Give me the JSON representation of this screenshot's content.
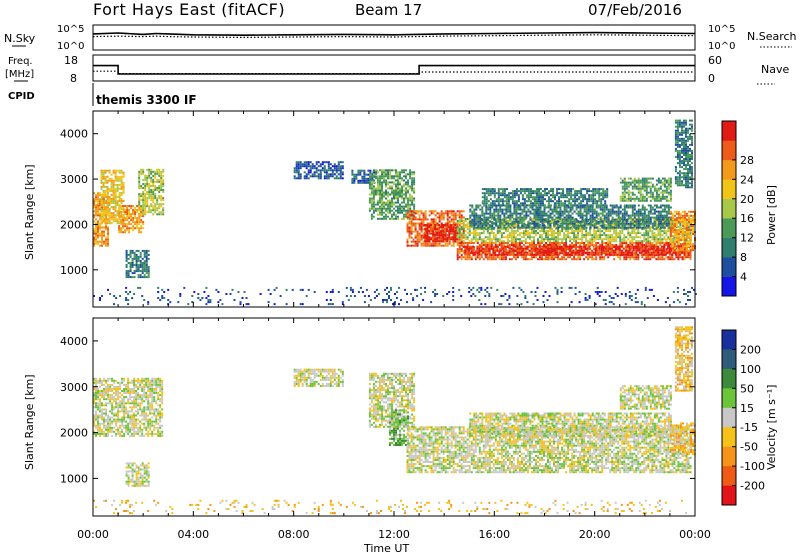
{
  "header": {
    "station": "Fort Hays East (fitACF)",
    "beam": "Beam 17",
    "date": "07/Feb/2016"
  },
  "chart_data": [
    {
      "type": "line",
      "name": "noise-panel",
      "left_label": "N.Sky",
      "right_label": "N.Search",
      "left_ticks": [
        "10^5",
        "10^0"
      ],
      "right_ticks": [
        "10^5",
        "10^0"
      ],
      "x": [
        0,
        1,
        2,
        2.5,
        3,
        4,
        6,
        8,
        10,
        12,
        14,
        16,
        18,
        20,
        22,
        24
      ],
      "series": [
        {
          "style": "solid",
          "values": [
            3.2,
            3.4,
            3.1,
            3.3,
            3.2,
            3.0,
            2.9,
            3.0,
            3.1,
            3.0,
            3.2,
            3.3,
            3.4,
            3.5,
            3.4,
            3.3
          ]
        },
        {
          "style": "dotted",
          "values": [
            2.6,
            2.7,
            2.6,
            2.7,
            2.6,
            2.5,
            2.4,
            2.5,
            2.6,
            2.5,
            2.7,
            2.8,
            2.9,
            3.0,
            2.9,
            2.8
          ]
        }
      ],
      "ylim": [
        0,
        5
      ]
    },
    {
      "type": "line",
      "name": "freq-nave-panel",
      "left_label_lines": [
        "Freq.",
        "[MHz]"
      ],
      "right_label": "Nave",
      "left_ticks": [
        "18",
        "8"
      ],
      "right_ticks": [
        "60",
        "0"
      ],
      "freq": {
        "x": [
          0,
          1.0,
          1.0,
          13.0,
          13.0,
          24
        ],
        "values": [
          14,
          14,
          10.5,
          10.5,
          14,
          14
        ],
        "ylim": [
          8,
          18
        ]
      },
      "nave": {
        "x": [
          0,
          1.0,
          1.0,
          13.0,
          13.0,
          24
        ],
        "values": [
          22,
          22,
          16,
          16,
          20,
          20
        ],
        "ylim": [
          0,
          60
        ]
      }
    },
    {
      "type": "heatmap",
      "name": "power-panel",
      "ylabel": "Slant Range [km]",
      "y_ticks": [
        "1000",
        "2000",
        "3000",
        "4000"
      ],
      "ylim": [
        180,
        4500
      ],
      "xlim": [
        0,
        24
      ],
      "colorbar": {
        "label": "Power [dB]",
        "ticks": [
          "4",
          "8",
          "12",
          "16",
          "20",
          "24",
          "28"
        ],
        "colors": [
          "#1515e8",
          "#1e4f9e",
          "#2f7e6e",
          "#4c9a58",
          "#a8c84a",
          "#f2c318",
          "#f39a1c",
          "#ee5a18",
          "#e21a14"
        ]
      },
      "regions": [
        {
          "t0": 0.0,
          "t1": 0.6,
          "r0": 1500,
          "r1": 2700,
          "level": 6
        },
        {
          "t0": 0.3,
          "t1": 1.2,
          "r0": 2000,
          "r1": 3200,
          "level": 5
        },
        {
          "t0": 1.0,
          "t1": 2.0,
          "r0": 1800,
          "r1": 2400,
          "level": 6
        },
        {
          "t0": 1.8,
          "t1": 2.8,
          "r0": 2200,
          "r1": 3200,
          "level": 4
        },
        {
          "t0": 1.3,
          "t1": 2.2,
          "r0": 800,
          "r1": 1400,
          "level": 2
        },
        {
          "t0": 8.0,
          "t1": 10.0,
          "r0": 3000,
          "r1": 3400,
          "level": 1
        },
        {
          "t0": 10.3,
          "t1": 11.3,
          "r0": 2900,
          "r1": 3200,
          "level": 1
        },
        {
          "t0": 11.0,
          "t1": 12.8,
          "r0": 2100,
          "r1": 3200,
          "level": 3
        },
        {
          "t0": 12.5,
          "t1": 14.8,
          "r0": 1500,
          "r1": 2300,
          "level": 7
        },
        {
          "t0": 13.2,
          "t1": 14.5,
          "r0": 1600,
          "r1": 2000,
          "level": 8
        },
        {
          "t0": 14.5,
          "t1": 23.8,
          "r0": 1200,
          "r1": 1600,
          "level": 7
        },
        {
          "t0": 14.8,
          "t1": 23.5,
          "r0": 1300,
          "r1": 1500,
          "level": 8
        },
        {
          "t0": 14.5,
          "t1": 23.8,
          "r0": 1600,
          "r1": 2100,
          "level": 4
        },
        {
          "t0": 15.0,
          "t1": 23.0,
          "r0": 1900,
          "r1": 2400,
          "level": 2
        },
        {
          "t0": 15.5,
          "t1": 20.5,
          "r0": 2400,
          "r1": 2800,
          "level": 2
        },
        {
          "t0": 21.0,
          "t1": 23.0,
          "r0": 2500,
          "r1": 3000,
          "level": 3
        },
        {
          "t0": 23.0,
          "t1": 24.0,
          "r0": 1400,
          "r1": 2300,
          "level": 6
        },
        {
          "t0": 23.2,
          "t1": 23.9,
          "r0": 2800,
          "r1": 4300,
          "level": 2
        },
        {
          "t0": 0.0,
          "t1": 24.0,
          "r0": 200,
          "r1": 600,
          "level": 1,
          "sparse": true
        }
      ]
    },
    {
      "type": "heatmap",
      "name": "velocity-panel",
      "ylabel": "Slant Range [km]",
      "y_ticks": [
        "1000",
        "2000",
        "3000",
        "4000"
      ],
      "ylim": [
        180,
        4500
      ],
      "xlim": [
        0,
        24
      ],
      "xlabel": "Time UT",
      "x_ticks": [
        "00:00",
        "04:00",
        "08:00",
        "12:00",
        "16:00",
        "20:00",
        "00:00"
      ],
      "colorbar": {
        "label": "Velocity [m s⁻¹]",
        "ticks": [
          "200",
          "100",
          "50",
          "15",
          "-15",
          "-50",
          "-100",
          "-200"
        ],
        "colors": [
          "#1a2f9e",
          "#2f5c7a",
          "#3d8a3a",
          "#6cc43b",
          "#c8c8c8",
          "#f5c21a",
          "#f59418",
          "#ef5a14",
          "#e2141a"
        ]
      },
      "regions": [
        {
          "t0": 0.0,
          "t1": 2.8,
          "r0": 1900,
          "r1": 3200,
          "level": 4
        },
        {
          "t0": 1.3,
          "t1": 2.2,
          "r0": 800,
          "r1": 1300,
          "level": 4
        },
        {
          "t0": 8.0,
          "t1": 10.0,
          "r0": 3000,
          "r1": 3400,
          "level": 4
        },
        {
          "t0": 11.0,
          "t1": 12.8,
          "r0": 2100,
          "r1": 3300,
          "level": 4
        },
        {
          "t0": 11.8,
          "t1": 12.6,
          "r0": 1700,
          "r1": 2500,
          "level": 3
        },
        {
          "t0": 12.5,
          "t1": 23.8,
          "r0": 1100,
          "r1": 2100,
          "level": 4
        },
        {
          "t0": 15.0,
          "t1": 23.0,
          "r0": 1900,
          "r1": 2400,
          "level": 4
        },
        {
          "t0": 21.0,
          "t1": 23.0,
          "r0": 2500,
          "r1": 3000,
          "level": 4
        },
        {
          "t0": 23.0,
          "t1": 24.0,
          "r0": 1500,
          "r1": 2200,
          "level": 5
        },
        {
          "t0": 23.2,
          "t1": 23.9,
          "r0": 2900,
          "r1": 4300,
          "level": 5
        },
        {
          "t0": 0.0,
          "t1": 24.0,
          "r0": 200,
          "r1": 500,
          "level": 5,
          "sparse": true
        }
      ]
    }
  ],
  "cpid": {
    "label": "CPID",
    "program": "themis 3300 IF"
  }
}
